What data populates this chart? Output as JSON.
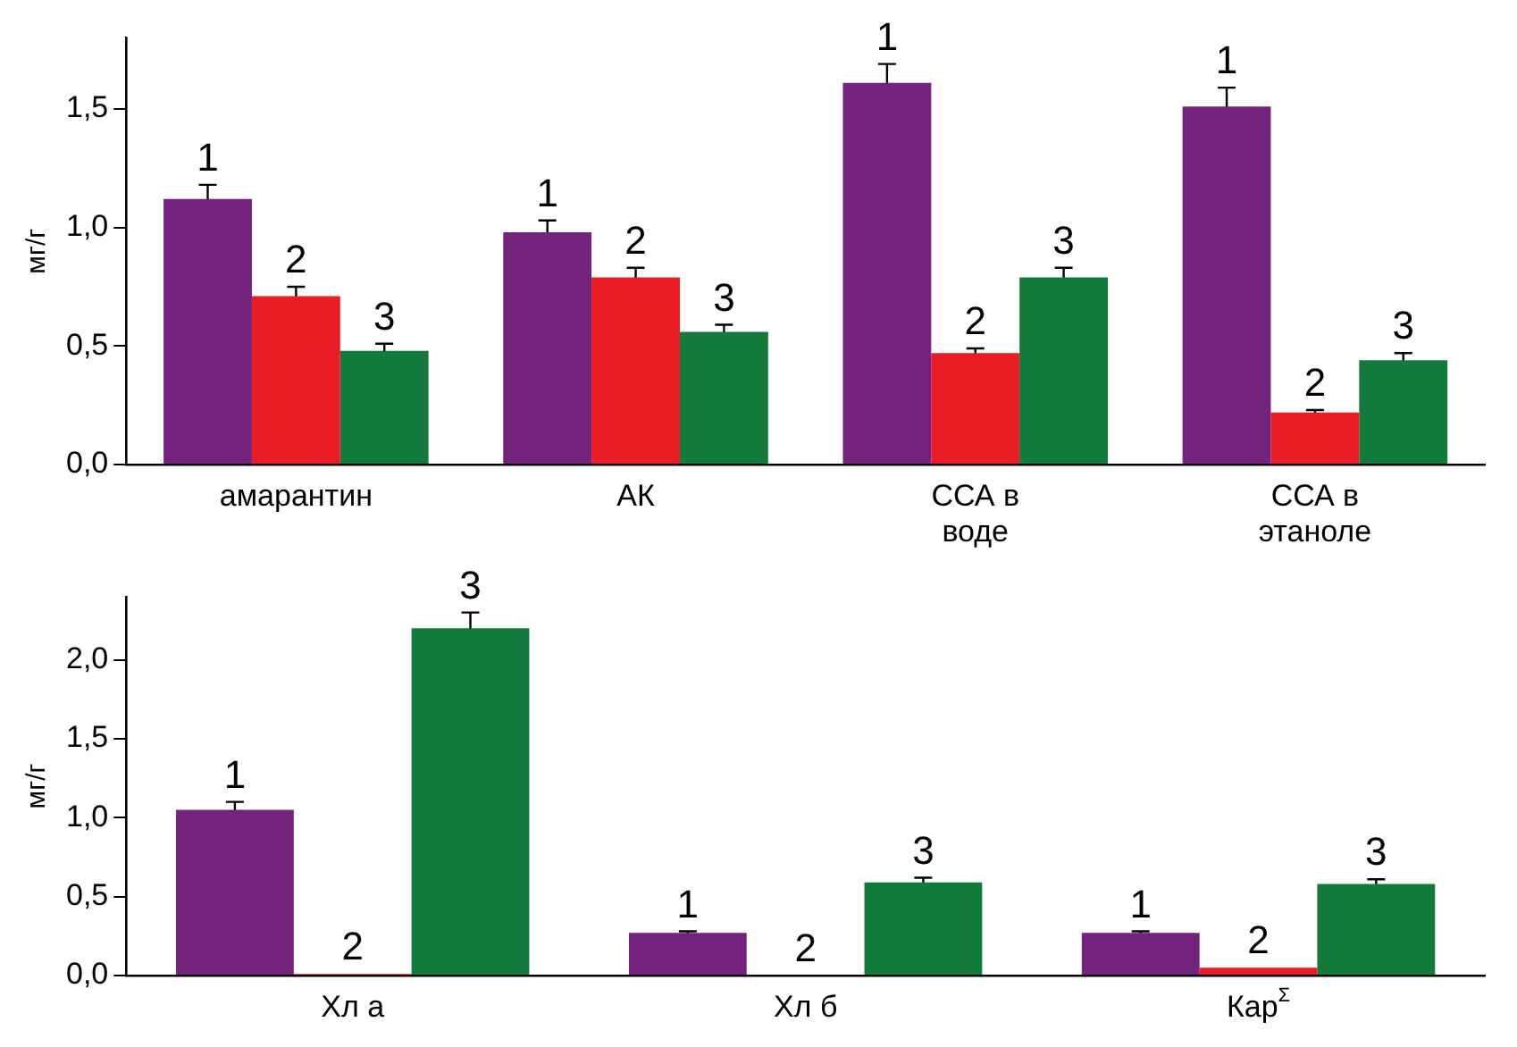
{
  "chart_data": [
    {
      "type": "bar",
      "ylabel": "мг/г",
      "categories": [
        "амарантин",
        "АК",
        "ССА в воде",
        "ССА в этаноле"
      ],
      "ylim": [
        0,
        1.8
      ],
      "yticks": [
        {
          "value": 0,
          "label": "0,0"
        },
        {
          "value": 0.5,
          "label": "0,5"
        },
        {
          "value": 1,
          "label": "1,0"
        },
        {
          "value": 1.5,
          "label": "1,5"
        }
      ],
      "grid": false,
      "legend": false,
      "series": [
        {
          "name": "1",
          "color": "#74237c",
          "values": [
            1.12,
            0.98,
            1.61,
            1.51
          ],
          "errors": [
            0.06,
            0.05,
            0.08,
            0.08
          ]
        },
        {
          "name": "2",
          "color": "#ea1c24",
          "values": [
            0.71,
            0.79,
            0.47,
            0.22
          ],
          "errors": [
            0.04,
            0.04,
            0.02,
            0.01
          ]
        },
        {
          "name": "3",
          "color": "#127a3a",
          "values": [
            0.48,
            0.56,
            0.79,
            0.44
          ],
          "errors": [
            0.03,
            0.03,
            0.04,
            0.03
          ]
        }
      ]
    },
    {
      "type": "bar",
      "ylabel": "мг/г",
      "categories": [
        "Хл a",
        "Хл б",
        "Кар$^{Σ}$"
      ],
      "ylim": [
        0,
        2.4
      ],
      "yticks": [
        {
          "value": 0,
          "label": "0,0"
        },
        {
          "value": 0.5,
          "label": "0,5"
        },
        {
          "value": 1,
          "label": "1,0"
        },
        {
          "value": 1.5,
          "label": "1,5"
        },
        {
          "value": 2,
          "label": "2,0"
        }
      ],
      "grid": false,
      "legend": false,
      "series": [
        {
          "name": "1",
          "color": "#74237c",
          "values": [
            1.05,
            0.27,
            0.27
          ],
          "errors": [
            0.05,
            0.01,
            0.01
          ]
        },
        {
          "name": "2",
          "color": "#ea1c24",
          "values": [
            0.01,
            0,
            0.05
          ],
          "errors": [
            null,
            null,
            null
          ]
        },
        {
          "name": "3",
          "color": "#127a3a",
          "values": [
            2.2,
            0.59,
            0.58
          ],
          "errors": [
            0.1,
            0.03,
            0.03
          ]
        }
      ]
    }
  ]
}
